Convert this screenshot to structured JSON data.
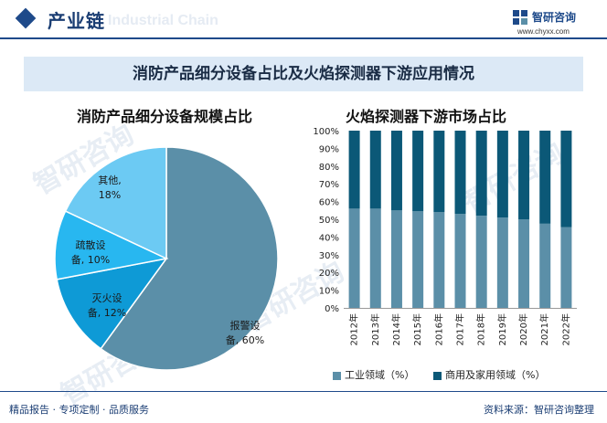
{
  "header": {
    "title": "产业链",
    "watermark": "Industrial Chain",
    "brand_name": "智研咨询",
    "brand_url": "www.chyxx.com"
  },
  "banner": {
    "title": "消防产品细分设备占比及火焰探测器下游应用情况"
  },
  "watermark_text": "智研咨询",
  "colors": {
    "navy": "#1e4a8a",
    "pie_baojing": "#5b8fa8",
    "pie_miehuo": "#0e9ad6",
    "pie_shusan": "#28b7f0",
    "pie_qita": "#6ccaf3",
    "bar_gongye": "#5b8fa8",
    "bar_shangyong": "#0b5877"
  },
  "chart_data": [
    {
      "type": "pie",
      "title": "消防产品细分设备规模占比",
      "slices": [
        {
          "name": "报警设备",
          "value": 60,
          "label_line1": "报警设",
          "label_line2": "备, 60%"
        },
        {
          "name": "灭火设备",
          "value": 12,
          "label_line1": "灭火设",
          "label_line2": "备, 12%"
        },
        {
          "name": "疏散设备",
          "value": 10,
          "label_line1": "疏散设",
          "label_line2": "备, 10%"
        },
        {
          "name": "其他",
          "value": 18,
          "label_line1": "其他,",
          "label_line2": "18%"
        }
      ]
    },
    {
      "type": "bar",
      "stacked": true,
      "title": "火焰探测器下游市场占比",
      "categories": [
        "2012年",
        "2013年",
        "2014年",
        "2015年",
        "2016年",
        "2017年",
        "2018年",
        "2019年",
        "2020年",
        "2021年",
        "2022年"
      ],
      "series": [
        {
          "name": "工业领域（%）",
          "values": [
            56,
            56,
            55,
            54.5,
            54,
            53,
            52,
            51,
            50,
            47.5,
            45.5
          ]
        },
        {
          "name": "商用及家用领域（%）",
          "values": [
            44,
            44,
            45,
            45.5,
            46,
            47,
            48,
            49,
            50,
            52.5,
            54.5
          ]
        }
      ],
      "ylim": [
        0,
        100
      ],
      "yticks": [
        "0%",
        "10%",
        "20%",
        "30%",
        "40%",
        "50%",
        "60%",
        "70%",
        "80%",
        "90%",
        "100%"
      ]
    }
  ],
  "footer": {
    "left": "精品报告 · 专项定制 · 品质服务",
    "right": "资料来源：智研咨询整理"
  }
}
